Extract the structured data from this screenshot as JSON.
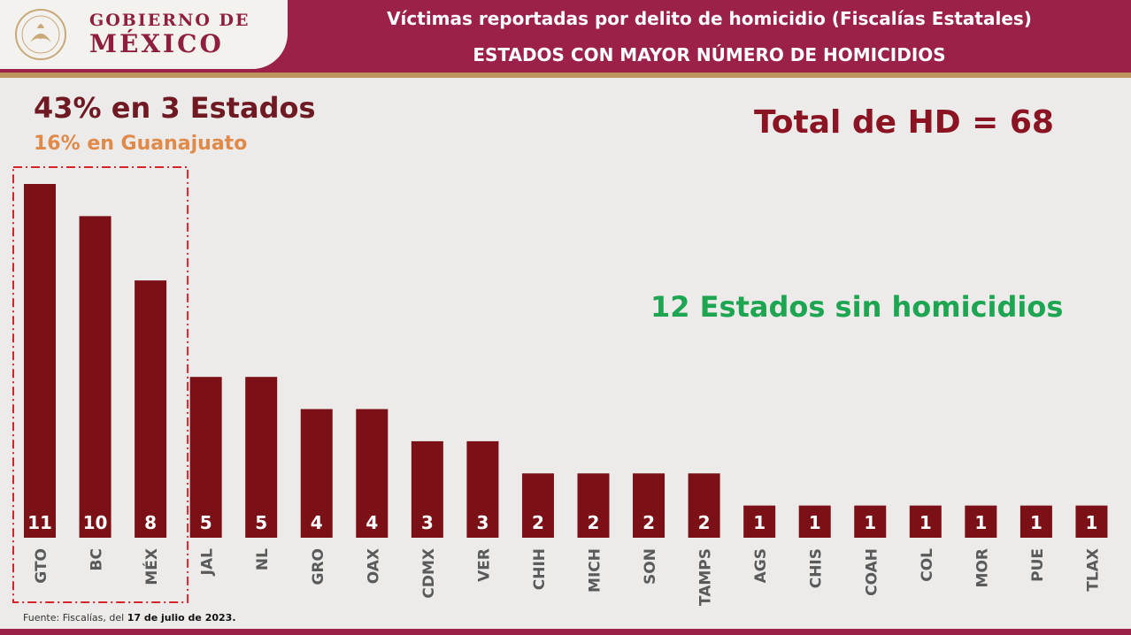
{
  "header": {
    "gov_line1": "GOBIERNO DE",
    "gov_line2": "MÉXICO",
    "title": "Víctimas reportadas por delito de homicidio (Fiscalías Estatales)",
    "subtitle": "ESTADOS CON MAYOR NÚMERO DE HOMICIDIOS"
  },
  "highlights": {
    "main": "43% en 3 Estados",
    "sub": "16% en Guanajuato",
    "total": "Total de HD = 68",
    "states_without": "12 Estados sin homicidios"
  },
  "footer": {
    "source_prefix": "Fuente: Fiscalías, del ",
    "source_date": "17 de julio de 2023."
  },
  "colors": {
    "brand": "#9c2149",
    "bar": "#7b1116",
    "accent_gold": "#bc955c",
    "highlight_box": "#d8232a",
    "green": "#1ea552",
    "orange": "#e08a4a"
  },
  "chart_data": {
    "type": "bar",
    "categories": [
      "GTO",
      "BC",
      "MÉX",
      "JAL",
      "NL",
      "GRO",
      "OAX",
      "CDMX",
      "VER",
      "CHIH",
      "MICH",
      "SON",
      "TAMPS",
      "AGS",
      "CHIS",
      "COAH",
      "COL",
      "MOR",
      "PUE",
      "TLAX"
    ],
    "values": [
      11,
      10,
      8,
      5,
      5,
      4,
      4,
      3,
      3,
      2,
      2,
      2,
      2,
      1,
      1,
      1,
      1,
      1,
      1,
      1
    ],
    "title": "",
    "xlabel": "",
    "ylabel": "",
    "ylim": [
      0,
      11
    ],
    "grid": false,
    "legend": "none",
    "highlighted_categories": [
      "GTO",
      "BC",
      "MÉX"
    ]
  }
}
